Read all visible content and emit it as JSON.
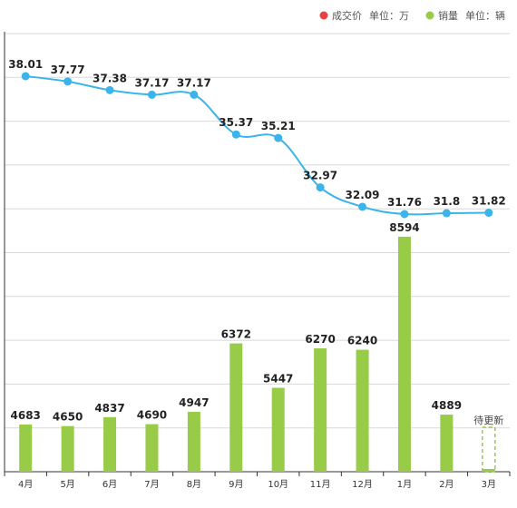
{
  "chart_data": {
    "type": "bar+line",
    "categories": [
      "4月",
      "5月",
      "6月",
      "7月",
      "8月",
      "9月",
      "10月",
      "11月",
      "12月",
      "1月",
      "2月",
      "3月"
    ],
    "series": [
      {
        "name": "成交价",
        "unit_label": "单位：万",
        "type": "line",
        "color": "#3ab4ea",
        "values": [
          38.01,
          37.77,
          37.38,
          37.17,
          37.17,
          35.37,
          35.21,
          32.97,
          32.09,
          31.76,
          31.8,
          31.82
        ]
      },
      {
        "name": "销量",
        "unit_label": "单位：辆",
        "type": "bar",
        "color": "#97cb48",
        "values": [
          4683,
          4650,
          4837,
          4690,
          4947,
          6372,
          5447,
          6270,
          6240,
          8594,
          4889,
          null
        ]
      }
    ],
    "pending_label": "待更新",
    "legend_marker_colors": {
      "price": "#e74343",
      "sales": "#97cb48"
    },
    "grid": true
  }
}
